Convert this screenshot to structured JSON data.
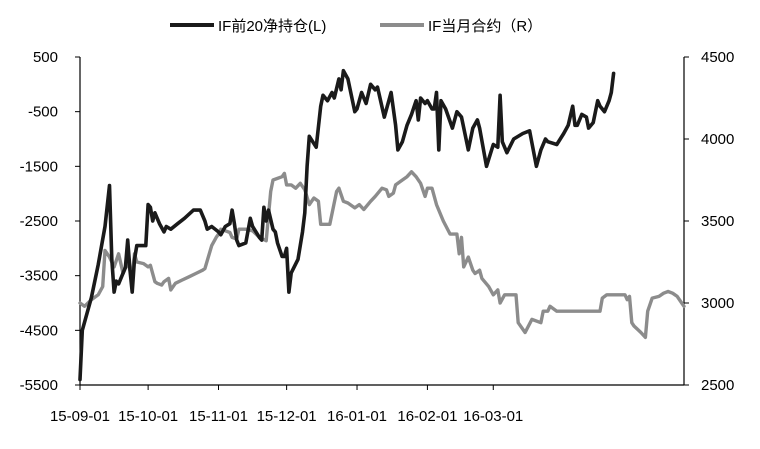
{
  "chart_data": {
    "type": "line",
    "title": "",
    "xlabel": "",
    "ylabel": "",
    "legend_position": "top",
    "grid": false,
    "x_ticks": [
      "15-09-01",
      "15-10-01",
      "15-11-01",
      "15-12-01",
      "16-01-01",
      "16-02-01",
      "16-03-01"
    ],
    "y_left": {
      "ticks": [
        500,
        -500,
        -1500,
        -2500,
        -3500,
        -4500,
        -5500
      ],
      "range": [
        -5500,
        500
      ]
    },
    "y_right": {
      "ticks": [
        4500,
        4000,
        3500,
        3000,
        2500
      ],
      "range": [
        2500,
        4500
      ]
    },
    "series": [
      {
        "name": "IF前20净持仓(L)",
        "axis": "left",
        "color": "#1a1a1a",
        "points": [
          [
            "2015-09-01",
            -5400
          ],
          [
            "2015-09-02",
            -4500
          ],
          [
            "2015-09-06",
            -3900
          ],
          [
            "2015-09-09",
            -3300
          ],
          [
            "2015-09-12",
            -2600
          ],
          [
            "2015-09-14",
            -1850
          ],
          [
            "2015-09-15",
            -3200
          ],
          [
            "2015-09-16",
            -3800
          ],
          [
            "2015-09-17",
            -3600
          ],
          [
            "2015-09-18",
            -3650
          ],
          [
            "2015-09-21",
            -3350
          ],
          [
            "2015-09-22",
            -2850
          ],
          [
            "2015-09-23",
            -3400
          ],
          [
            "2015-09-24",
            -3800
          ],
          [
            "2015-09-25",
            -3200
          ],
          [
            "2015-09-26",
            -2950
          ],
          [
            "2015-09-29",
            -2950
          ],
          [
            "2015-09-30",
            -2950
          ],
          [
            "2015-10-01",
            -2200
          ],
          [
            "2015-10-02",
            -2250
          ],
          [
            "2015-10-03",
            -2500
          ],
          [
            "2015-10-04",
            -2350
          ],
          [
            "2015-10-06",
            -2550
          ],
          [
            "2015-10-08",
            -2700
          ],
          [
            "2015-10-09",
            -2600
          ],
          [
            "2015-10-11",
            -2650
          ],
          [
            "2015-10-14",
            -2550
          ],
          [
            "2015-10-17",
            -2450
          ],
          [
            "2015-10-21",
            -2300
          ],
          [
            "2015-10-24",
            -2300
          ],
          [
            "2015-10-26",
            -2500
          ],
          [
            "2015-10-27",
            -2650
          ],
          [
            "2015-10-29",
            -2600
          ],
          [
            "2015-11-01",
            -2700
          ],
          [
            "2015-11-02",
            -2750
          ],
          [
            "2015-11-04",
            -2600
          ],
          [
            "2015-11-06",
            -2550
          ],
          [
            "2015-11-07",
            -2300
          ],
          [
            "2015-11-08",
            -2550
          ],
          [
            "2015-11-09",
            -2850
          ],
          [
            "2015-11-10",
            -2950
          ],
          [
            "2015-11-13",
            -2900
          ],
          [
            "2015-11-15",
            -2450
          ],
          [
            "2015-11-16",
            -2600
          ],
          [
            "2015-11-19",
            -2800
          ],
          [
            "2015-11-20",
            -2850
          ],
          [
            "2015-11-21",
            -2250
          ],
          [
            "2015-11-22",
            -2500
          ],
          [
            "2015-11-23",
            -2300
          ],
          [
            "2015-11-25",
            -2650
          ],
          [
            "2015-11-26",
            -2700
          ],
          [
            "2015-11-27",
            -2900
          ],
          [
            "2015-11-29",
            -3150
          ],
          [
            "2015-11-30",
            -3150
          ],
          [
            "2015-12-01",
            -3000
          ],
          [
            "2015-12-02",
            -3800
          ],
          [
            "2015-12-03",
            -3450
          ],
          [
            "2015-12-06",
            -3200
          ],
          [
            "2015-12-08",
            -2700
          ],
          [
            "2015-12-09",
            -2350
          ],
          [
            "2015-12-10",
            -1500
          ],
          [
            "2015-12-11",
            -950
          ],
          [
            "2015-12-14",
            -1150
          ],
          [
            "2015-12-16",
            -400
          ],
          [
            "2015-12-17",
            -200
          ],
          [
            "2015-12-19",
            -300
          ],
          [
            "2015-12-21",
            -150
          ],
          [
            "2015-12-22",
            -250
          ],
          [
            "2015-12-24",
            100
          ],
          [
            "2015-12-25",
            -100
          ],
          [
            "2015-12-26",
            250
          ],
          [
            "2015-12-28",
            100
          ],
          [
            "2015-12-31",
            -500
          ],
          [
            "2016-01-01",
            -450
          ],
          [
            "2016-01-03",
            -150
          ],
          [
            "2016-01-05",
            -350
          ],
          [
            "2016-01-07",
            0
          ],
          [
            "2016-01-09",
            -100
          ],
          [
            "2016-01-10",
            -50
          ],
          [
            "2016-01-13",
            -600
          ],
          [
            "2016-01-16",
            -150
          ],
          [
            "2016-01-18",
            -750
          ],
          [
            "2016-01-19",
            -1200
          ],
          [
            "2016-01-21",
            -1050
          ],
          [
            "2016-01-23",
            -750
          ],
          [
            "2016-01-25",
            -550
          ],
          [
            "2016-01-27",
            -300
          ],
          [
            "2016-01-28",
            -650
          ],
          [
            "2016-01-29",
            -250
          ],
          [
            "2016-01-31",
            -350
          ],
          [
            "2016-02-01",
            -300
          ],
          [
            "2016-02-03",
            -450
          ],
          [
            "2016-02-04",
            -450
          ],
          [
            "2016-02-05",
            -150
          ],
          [
            "2016-02-06",
            -1200
          ],
          [
            "2016-02-07",
            -300
          ],
          [
            "2016-02-09",
            -450
          ],
          [
            "2016-02-12",
            -800
          ],
          [
            "2016-02-14",
            -500
          ],
          [
            "2016-02-16",
            -600
          ],
          [
            "2016-02-19",
            -1200
          ],
          [
            "2016-02-21",
            -800
          ],
          [
            "2016-02-23",
            -650
          ],
          [
            "2016-02-24",
            -800
          ],
          [
            "2016-02-27",
            -1500
          ],
          [
            "2016-03-01",
            -1100
          ],
          [
            "2016-03-03",
            -1150
          ],
          [
            "2016-03-04",
            -200
          ],
          [
            "2016-03-05",
            -1050
          ],
          [
            "2016-03-07",
            -1250
          ],
          [
            "2016-03-10",
            -1000
          ],
          [
            "2016-03-14",
            -900
          ],
          [
            "2016-03-17",
            -850
          ],
          [
            "2016-03-20",
            -1500
          ],
          [
            "2016-03-22",
            -1200
          ],
          [
            "2016-03-24",
            -1000
          ],
          [
            "2016-03-25",
            -1050
          ],
          [
            "2016-03-29",
            -1100
          ],
          [
            "2016-04-01",
            -900
          ],
          [
            "2016-04-03",
            -750
          ],
          [
            "2016-04-05",
            -400
          ],
          [
            "2016-04-06",
            -750
          ],
          [
            "2016-04-07",
            -750
          ],
          [
            "2016-04-09",
            -550
          ],
          [
            "2016-04-11",
            -600
          ],
          [
            "2016-04-12",
            -800
          ],
          [
            "2016-04-14",
            -700
          ],
          [
            "2016-04-16",
            -300
          ],
          [
            "2016-04-17",
            -400
          ],
          [
            "2016-04-19",
            -500
          ],
          [
            "2016-04-21",
            -300
          ],
          [
            "2016-04-22",
            -150
          ],
          [
            "2016-04-23",
            200
          ]
        ]
      },
      {
        "name": "IF当月合约（R）",
        "axis": "right",
        "color": "#8c8c8c",
        "points": [
          [
            "2015-09-01",
            3000
          ],
          [
            "2015-09-03",
            2980
          ],
          [
            "2015-09-06",
            3020
          ],
          [
            "2015-09-09",
            3050
          ],
          [
            "2015-09-11",
            3100
          ],
          [
            "2015-09-12",
            3320
          ],
          [
            "2015-09-14",
            3280
          ],
          [
            "2015-09-16",
            3220
          ],
          [
            "2015-09-18",
            3300
          ],
          [
            "2015-09-20",
            3180
          ],
          [
            "2015-09-22",
            3250
          ],
          [
            "2015-09-24",
            3150
          ],
          [
            "2015-09-25",
            3300
          ],
          [
            "2015-09-26",
            3250
          ],
          [
            "2015-09-29",
            3240
          ],
          [
            "2015-10-01",
            3220
          ],
          [
            "2015-10-02",
            3230
          ],
          [
            "2015-10-04",
            3130
          ],
          [
            "2015-10-05",
            3120
          ],
          [
            "2015-10-07",
            3110
          ],
          [
            "2015-10-08",
            3130
          ],
          [
            "2015-10-10",
            3150
          ],
          [
            "2015-10-11",
            3080
          ],
          [
            "2015-10-13",
            3120
          ],
          [
            "2015-10-16",
            3140
          ],
          [
            "2015-10-19",
            3160
          ],
          [
            "2015-10-22",
            3180
          ],
          [
            "2015-10-25",
            3200
          ],
          [
            "2015-10-26",
            3210
          ],
          [
            "2015-10-29",
            3350
          ],
          [
            "2015-10-31",
            3400
          ],
          [
            "2015-11-01",
            3420
          ],
          [
            "2015-11-02",
            3450
          ],
          [
            "2015-11-04",
            3440
          ],
          [
            "2015-11-06",
            3430
          ],
          [
            "2015-11-07",
            3400
          ],
          [
            "2015-11-09",
            3390
          ],
          [
            "2015-11-10",
            3450
          ],
          [
            "2015-11-13",
            3450
          ],
          [
            "2015-11-16",
            3440
          ],
          [
            "2015-11-19",
            3400
          ],
          [
            "2015-11-22",
            3380
          ],
          [
            "2015-11-24",
            3680
          ],
          [
            "2015-11-25",
            3750
          ],
          [
            "2015-11-27",
            3760
          ],
          [
            "2015-11-29",
            3770
          ],
          [
            "2015-11-30",
            3790
          ],
          [
            "2015-12-01",
            3720
          ],
          [
            "2015-12-03",
            3720
          ],
          [
            "2015-12-05",
            3700
          ],
          [
            "2015-12-07",
            3730
          ],
          [
            "2015-12-09",
            3690
          ],
          [
            "2015-12-11",
            3600
          ],
          [
            "2015-12-13",
            3640
          ],
          [
            "2015-12-15",
            3620
          ],
          [
            "2015-12-16",
            3480
          ],
          [
            "2015-12-18",
            3480
          ],
          [
            "2015-12-20",
            3480
          ],
          [
            "2015-12-23",
            3680
          ],
          [
            "2015-12-24",
            3700
          ],
          [
            "2015-12-26",
            3620
          ],
          [
            "2015-12-28",
            3610
          ],
          [
            "2015-12-31",
            3580
          ],
          [
            "2016-01-02",
            3600
          ],
          [
            "2016-01-04",
            3570
          ],
          [
            "2016-01-07",
            3620
          ],
          [
            "2016-01-09",
            3650
          ],
          [
            "2016-01-12",
            3700
          ],
          [
            "2016-01-14",
            3690
          ],
          [
            "2016-01-15",
            3650
          ],
          [
            "2016-01-17",
            3670
          ],
          [
            "2016-01-18",
            3720
          ],
          [
            "2016-01-21",
            3750
          ],
          [
            "2016-01-23",
            3770
          ],
          [
            "2016-01-25",
            3800
          ],
          [
            "2016-01-27",
            3770
          ],
          [
            "2016-01-29",
            3730
          ],
          [
            "2016-01-31",
            3650
          ],
          [
            "2016-02-01",
            3700
          ],
          [
            "2016-02-03",
            3700
          ],
          [
            "2016-02-05",
            3600
          ],
          [
            "2016-02-08",
            3500
          ],
          [
            "2016-02-11",
            3420
          ],
          [
            "2016-02-14",
            3420
          ],
          [
            "2016-02-15",
            3300
          ],
          [
            "2016-02-16",
            3400
          ],
          [
            "2016-02-17",
            3220
          ],
          [
            "2016-02-19",
            3280
          ],
          [
            "2016-02-21",
            3200
          ],
          [
            "2016-02-22",
            3180
          ],
          [
            "2016-02-24",
            3200
          ],
          [
            "2016-02-25",
            3150
          ],
          [
            "2016-02-28",
            3100
          ],
          [
            "2016-03-01",
            3050
          ],
          [
            "2016-03-03",
            3080
          ],
          [
            "2016-03-04",
            3000
          ],
          [
            "2016-03-06",
            3050
          ],
          [
            "2016-03-07",
            3050
          ],
          [
            "2016-03-11",
            3050
          ],
          [
            "2016-03-12",
            2880
          ],
          [
            "2016-03-15",
            2820
          ],
          [
            "2016-03-18",
            2900
          ],
          [
            "2016-03-22",
            2880
          ],
          [
            "2016-03-23",
            2950
          ],
          [
            "2016-03-25",
            2950
          ],
          [
            "2016-03-26",
            2980
          ],
          [
            "2016-03-29",
            2950
          ],
          [
            "2016-04-01",
            2950
          ],
          [
            "2016-04-06",
            2950
          ],
          [
            "2016-04-09",
            2950
          ],
          [
            "2016-04-10",
            2950
          ],
          [
            "2016-04-14",
            2950
          ],
          [
            "2016-04-17",
            2950
          ],
          [
            "2016-04-18",
            3030
          ],
          [
            "2016-04-20",
            3050
          ],
          [
            "2016-04-23",
            3050
          ],
          [
            "2016-04-26",
            3050
          ],
          [
            "2016-04-28",
            3050
          ],
          [
            "2016-04-29",
            3020
          ],
          [
            "2016-04-30",
            3040
          ],
          [
            "2016-05-01",
            2880
          ],
          [
            "2016-05-02",
            2860
          ],
          [
            "2016-05-05",
            2820
          ],
          [
            "2016-05-07",
            2790
          ],
          [
            "2016-05-08",
            2950
          ],
          [
            "2016-05-10",
            3030
          ],
          [
            "2016-05-13",
            3040
          ],
          [
            "2016-05-15",
            3060
          ],
          [
            "2016-05-17",
            3070
          ],
          [
            "2016-05-19",
            3060
          ],
          [
            "2016-05-21",
            3040
          ],
          [
            "2016-05-23",
            3000
          ],
          [
            "2016-05-24",
            2980
          ]
        ]
      }
    ]
  }
}
